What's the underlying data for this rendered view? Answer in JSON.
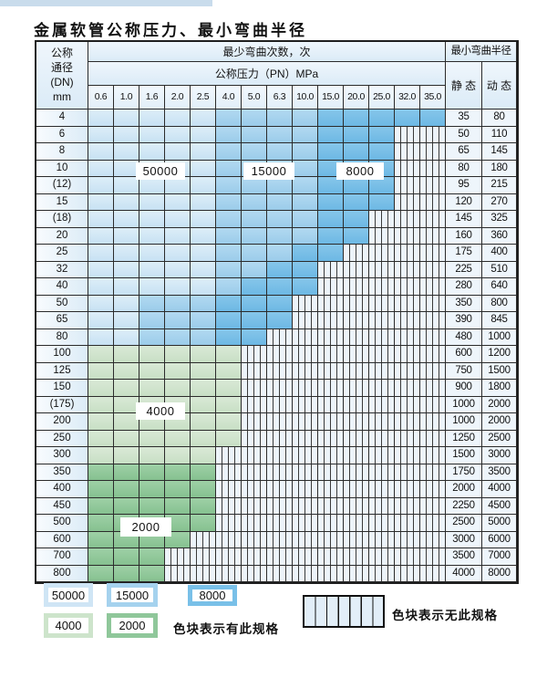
{
  "page": {
    "title": "金属软管公称压力、最小弯曲半径"
  },
  "table": {
    "corner_lines": [
      "公称",
      "通径",
      "(DN)",
      "mm"
    ],
    "bend_header": "最少弯曲次数，次",
    "radius_header": "最小弯曲半径",
    "pressure_header": "公称压力（PN）MPa",
    "static_label": "静 态",
    "dynamic_label": "动 态"
  },
  "chart_data": {
    "type": "heatmap",
    "title": "金属软管公称压力、最小弯曲半径",
    "xlabel": "公称压力（PN）MPa",
    "ylabel": "公称通径 (DN) mm",
    "columns": [
      "0.6",
      "1.0",
      "1.6",
      "2.0",
      "2.5",
      "4.0",
      "5.0",
      "6.3",
      "10.0",
      "15.0",
      "20.0",
      "25.0",
      "32.0",
      "35.0"
    ],
    "cell_legend": {
      "L": "50000次",
      "M": "15000次",
      "D": "8000次",
      "G": "4000次",
      "g": "2000次",
      "X": "无此规格"
    },
    "rows": [
      {
        "dn": "4",
        "cells": "LLLLLMMMMDDDDD",
        "static": "35",
        "dynamic": "80"
      },
      {
        "dn": "6",
        "cells": "LLLLLMMMMDDDXX",
        "static": "50",
        "dynamic": "110"
      },
      {
        "dn": "8",
        "cells": "LLLLLMMMMDDDXX",
        "static": "65",
        "dynamic": "145"
      },
      {
        "dn": "10",
        "cells": "LLLLLMMMMDDDXX",
        "static": "80",
        "dynamic": "180"
      },
      {
        "dn": "(12)",
        "cells": "LLLLLMMMMDDDXX",
        "static": "95",
        "dynamic": "215"
      },
      {
        "dn": "15",
        "cells": "LLLLLMMMMDDDXX",
        "static": "120",
        "dynamic": "270"
      },
      {
        "dn": "(18)",
        "cells": "LLLLLMMMMDDXXX",
        "static": "145",
        "dynamic": "325"
      },
      {
        "dn": "20",
        "cells": "LLLLLMMMMDDXXX",
        "static": "160",
        "dynamic": "360"
      },
      {
        "dn": "25",
        "cells": "LLLLLMMMDDXXXX",
        "static": "175",
        "dynamic": "400"
      },
      {
        "dn": "32",
        "cells": "LLLLLMMDDXXXXX",
        "static": "225",
        "dynamic": "510"
      },
      {
        "dn": "40",
        "cells": "LLLLLMDDDXXXXX",
        "static": "280",
        "dynamic": "640"
      },
      {
        "dn": "50",
        "cells": "LLMMMDDDXXXXXX",
        "static": "350",
        "dynamic": "800"
      },
      {
        "dn": "65",
        "cells": "LLMMMDDDXXXXXX",
        "static": "390",
        "dynamic": "845"
      },
      {
        "dn": "80",
        "cells": "LLMMMDDXXXXXXX",
        "static": "480",
        "dynamic": "1000"
      },
      {
        "dn": "100",
        "cells": "GGGGGGXXXXXXXX",
        "static": "600",
        "dynamic": "1200"
      },
      {
        "dn": "125",
        "cells": "GGGGGGXXXXXXXX",
        "static": "750",
        "dynamic": "1500"
      },
      {
        "dn": "150",
        "cells": "GGGGGGXXXXXXXX",
        "static": "900",
        "dynamic": "1800"
      },
      {
        "dn": "(175)",
        "cells": "GGGGGGXXXXXXXX",
        "static": "1000",
        "dynamic": "2000"
      },
      {
        "dn": "200",
        "cells": "GGGGGGXXXXXXXX",
        "static": "1000",
        "dynamic": "2000"
      },
      {
        "dn": "250",
        "cells": "GGGGGGXXXXXXXX",
        "static": "1250",
        "dynamic": "2500"
      },
      {
        "dn": "300",
        "cells": "GGGGGXXXXXXXXX",
        "static": "1500",
        "dynamic": "3000"
      },
      {
        "dn": "350",
        "cells": "gggggXXXXXXXXX",
        "static": "1750",
        "dynamic": "3500"
      },
      {
        "dn": "400",
        "cells": "gggggXXXXXXXXX",
        "static": "2000",
        "dynamic": "4000"
      },
      {
        "dn": "450",
        "cells": "gggggXXXXXXXXX",
        "static": "2250",
        "dynamic": "4500"
      },
      {
        "dn": "500",
        "cells": "gggggXXXXXXXXX",
        "static": "2500",
        "dynamic": "5000"
      },
      {
        "dn": "600",
        "cells": "ggggXXXXXXXXXX",
        "static": "3000",
        "dynamic": "6000"
      },
      {
        "dn": "700",
        "cells": "gggXXXXXXXXXXX",
        "static": "3500",
        "dynamic": "7000"
      },
      {
        "dn": "800",
        "cells": "gggXXXXXXXXXXX",
        "static": "4000",
        "dynamic": "8000"
      }
    ],
    "overlay_labels": [
      {
        "text": "50000"
      },
      {
        "text": "15000"
      },
      {
        "text": "8000"
      },
      {
        "text": "4000"
      },
      {
        "text": "2000"
      }
    ],
    "legend_position": "bottom",
    "grid": true
  },
  "legend": {
    "swatches": [
      {
        "label": "50000",
        "color": "#cfe5f5"
      },
      {
        "label": "15000",
        "color": "#a5d2ee"
      },
      {
        "label": "8000",
        "color": "#79c0e8"
      },
      {
        "label": "4000",
        "color": "#cde4cb"
      },
      {
        "label": "2000",
        "color": "#8fc79a"
      }
    ],
    "has_spec_text": "色块表示有此规格",
    "no_spec_text": "色块表示无此规格"
  },
  "colors": {
    "cycles_50000": "#cfe5f5",
    "cycles_15000": "#a5d2ee",
    "cycles_8000": "#79c0e8",
    "cycles_4000": "#cde4cb",
    "cycles_2000": "#8fc79a",
    "no_spec_stripe_bg": "#edf4fa",
    "grid_line": "#2b2b2b"
  }
}
